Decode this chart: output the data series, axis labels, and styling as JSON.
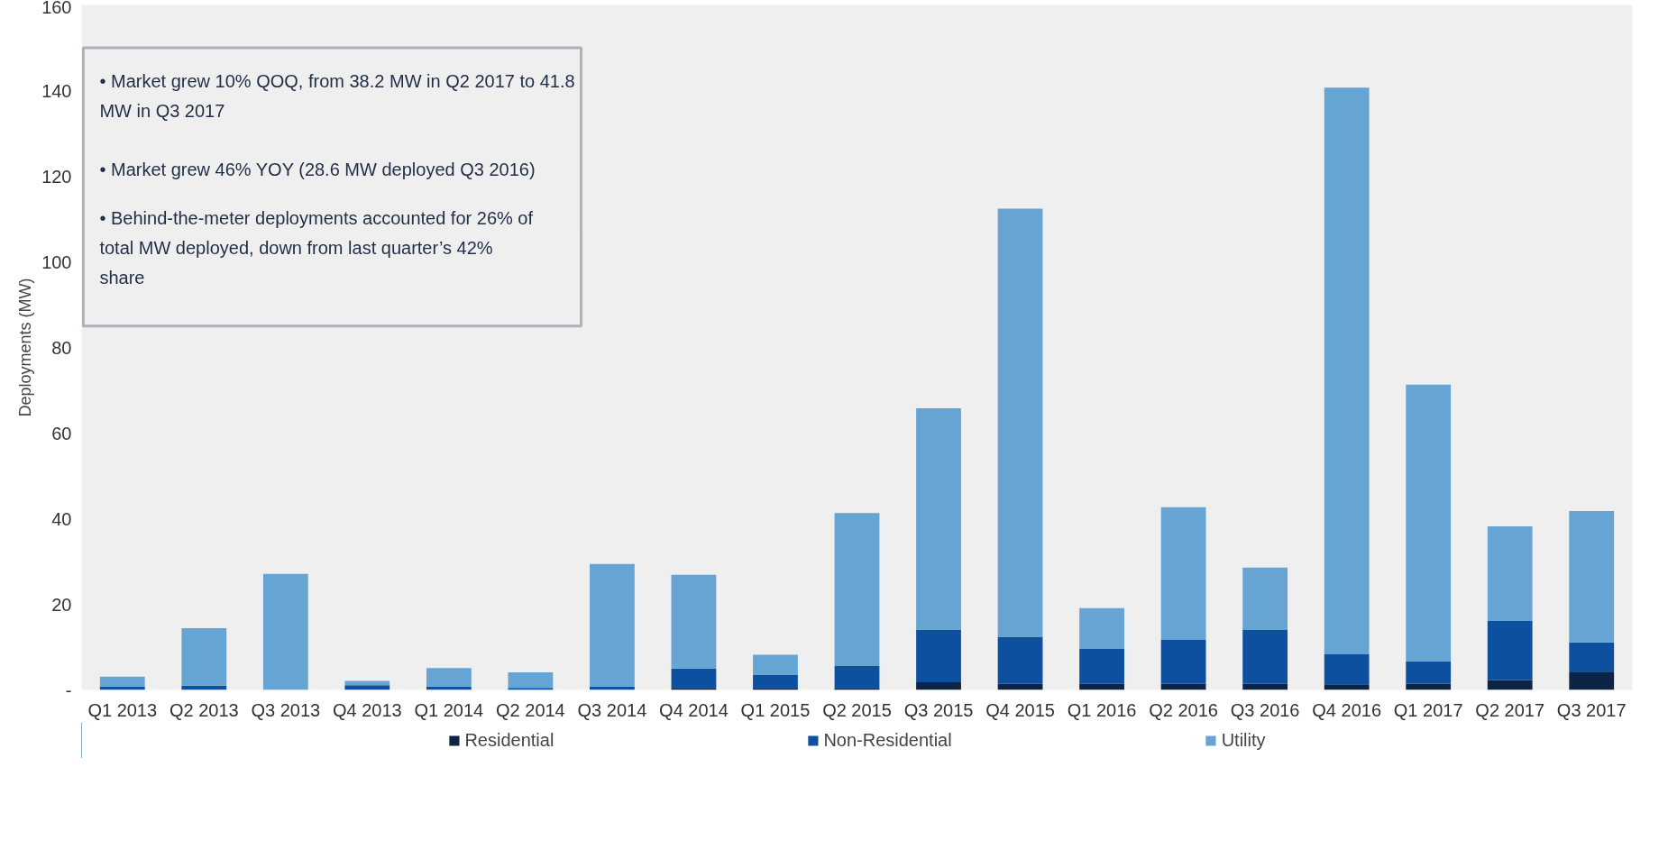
{
  "chart_data": {
    "type": "bar",
    "stacked": true,
    "ylabel": "Deployments (MW)",
    "categories": [
      "Q1 2013",
      "Q2 2013",
      "Q3 2013",
      "Q4 2013",
      "Q1 2014",
      "Q2 2014",
      "Q3 2014",
      "Q4 2014",
      "Q1 2015",
      "Q2 2015",
      "Q3 2015",
      "Q4 2015",
      "Q1 2016",
      "Q2 2016",
      "Q3 2016",
      "Q4 2016",
      "Q1 2017",
      "Q2 2017",
      "Q3 2017"
    ],
    "series": [
      {
        "name": "Residential",
        "color": "#0d2444",
        "values": [
          0,
          0,
          0,
          0,
          0,
          0,
          0,
          0.5,
          0.5,
          0.5,
          1.8,
          1.4,
          1.4,
          1.4,
          1.4,
          1.3,
          1.5,
          2.3,
          4.1
        ]
      },
      {
        "name": "Non-Residential",
        "color": "#0e50a0",
        "values": [
          0.8,
          1.0,
          null,
          1.1,
          0.8,
          0.5,
          0.8,
          4.5,
          3.0,
          5.2,
          12.3,
          11.0,
          8.2,
          10.3,
          12.7,
          7.0,
          5.2,
          13.8,
          7.0
        ]
      },
      {
        "name": "Utility",
        "color": "#66a4d4",
        "values": [
          2.3,
          13.4,
          27.1,
          1.0,
          4.3,
          3.6,
          28.6,
          21.9,
          4.7,
          35.6,
          51.7,
          100.0,
          9.5,
          31.0,
          14.5,
          132.4,
          64.6,
          22.1,
          30.7
        ]
      }
    ],
    "ylim": [
      0,
      160
    ],
    "yticks": [
      {
        "value": 0,
        "label": "-"
      },
      20,
      40,
      60,
      80,
      100,
      120,
      140,
      160
    ],
    "grid": false,
    "legend": "bottom",
    "annotations": [
      "• Market grew 10% QOQ, from 38.2 MW in Q2 2017 to 41.8 MW in Q3 2017",
      "• Market grew 46% YOY (28.6 MW deployed Q3 2016)",
      "• Behind-the-meter deployments accounted for 26% of total MW deployed, down from last quarter’s 42% share"
    ]
  }
}
